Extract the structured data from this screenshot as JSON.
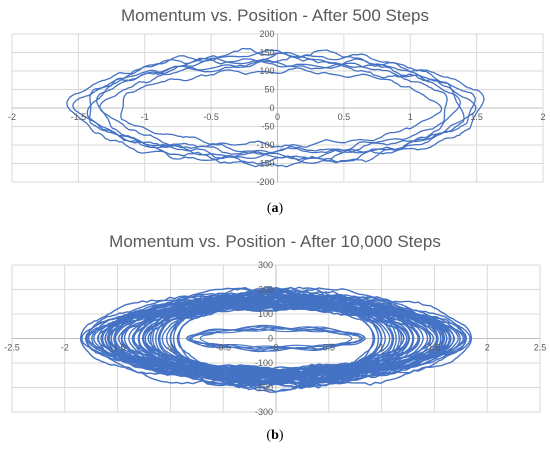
{
  "figure": {
    "caption_a": "a",
    "caption_b": "b"
  },
  "series_color": "#4472C4",
  "chart_data": [
    {
      "type": "line",
      "title": "Momentum vs. Position - After 500 Steps",
      "xlabel": "",
      "ylabel": "",
      "xlim": [
        -2,
        2
      ],
      "ylim": [
        -200,
        200
      ],
      "x_ticks": [
        -2,
        -1.5,
        -1,
        -0.5,
        0,
        0.5,
        1,
        1.5,
        2
      ],
      "y_ticks": [
        -200,
        -150,
        -100,
        -50,
        0,
        50,
        100,
        150,
        200
      ],
      "x_tick_labels": [
        "-2",
        "-1.5",
        "-1",
        "-0.5",
        "0",
        "0.5",
        "1",
        "1.5",
        "2"
      ],
      "y_tick_labels": [
        "-200",
        "-150",
        "-100",
        "-50",
        "0",
        "50",
        "100",
        "150",
        "200"
      ],
      "grid": true,
      "trajectory": {
        "orbits": [
          {
            "x_amplitude": 1.45,
            "p_amplitude": 130
          },
          {
            "x_amplitude": 1.3,
            "p_amplitude": 115
          },
          {
            "x_amplitude": 1.55,
            "p_amplitude": 145
          },
          {
            "x_amplitude": 1.2,
            "p_amplitude": 100
          },
          {
            "x_amplitude": 1.4,
            "p_amplitude": 150
          },
          {
            "x_amplitude": 1.5,
            "p_amplitude": 120
          },
          {
            "x_amplitude": 1.35,
            "p_amplitude": 135
          }
        ],
        "x_range_observed": [
          -1.6,
          1.55
        ],
        "p_range_observed": [
          -175,
          165
        ]
      }
    },
    {
      "type": "line",
      "title": "Momentum vs. Position - After 10,000 Steps",
      "xlabel": "",
      "ylabel": "",
      "xlim": [
        -2.5,
        2.5
      ],
      "ylim": [
        -300,
        300
      ],
      "x_ticks": [
        -2.5,
        -2,
        -1.5,
        -1,
        -0.5,
        0,
        0.5,
        1,
        1.5,
        2,
        2.5
      ],
      "y_ticks": [
        -300,
        -200,
        -100,
        0,
        100,
        200,
        300
      ],
      "x_tick_labels": [
        "-2.5",
        "-2",
        "-1.5",
        "-1",
        "-0.5",
        "0",
        "0.5",
        "1",
        "1.5",
        "2",
        "2.5"
      ],
      "y_tick_labels": [
        "-300",
        "-200",
        "-100",
        "0",
        "100",
        "200",
        "300"
      ],
      "grid": true,
      "trajectory": {
        "band": {
          "inner_x": 0.75,
          "outer_x": 1.85,
          "inner_p": 35,
          "outer_p": 200
        },
        "x_range_observed": [
          -1.9,
          1.9
        ],
        "p_range_observed": [
          -210,
          200
        ]
      }
    }
  ]
}
